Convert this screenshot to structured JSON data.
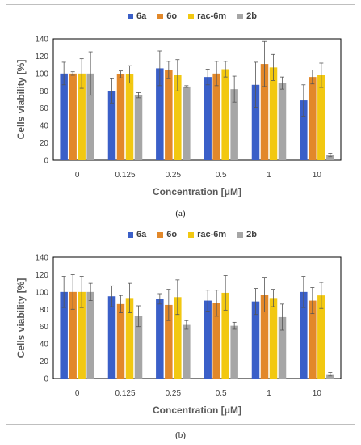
{
  "chart_data": [
    {
      "type": "bar",
      "panel_label": "(a)",
      "xlabel": "Concentration [μM]",
      "ylabel": "Cells viability [%]",
      "ylim": [
        0,
        140
      ],
      "yticks": [
        0,
        20,
        40,
        60,
        80,
        100,
        120,
        140
      ],
      "categories": [
        "0",
        "0.125",
        "0.25",
        "0.5",
        "1",
        "10"
      ],
      "legend_position": "top",
      "series": [
        {
          "name": "6a",
          "color": "#3a5fc8",
          "values": [
            100,
            80,
            106,
            96,
            87,
            69
          ],
          "errors": [
            13,
            14,
            20,
            9,
            26,
            18
          ]
        },
        {
          "name": "6o",
          "color": "#e2882a",
          "values": [
            100,
            99,
            104,
            100,
            111,
            96
          ],
          "errors": [
            2,
            4,
            10,
            14,
            26,
            8
          ]
        },
        {
          "name": "rac-6m",
          "color": "#f2c811",
          "values": [
            100,
            99,
            98,
            105,
            107,
            98
          ],
          "errors": [
            17,
            10,
            18,
            9,
            15,
            14
          ]
        },
        {
          "name": "2b",
          "color": "#a6a6a6",
          "values": [
            100,
            75,
            85,
            82,
            89,
            6
          ],
          "errors": [
            25,
            3,
            1,
            15,
            7,
            2
          ]
        }
      ]
    },
    {
      "type": "bar",
      "panel_label": "(b)",
      "xlabel": "Concentration [μM]",
      "ylabel": "Cells viability [%]",
      "ylim": [
        0,
        140
      ],
      "yticks": [
        0,
        20,
        40,
        60,
        80,
        100,
        120,
        140
      ],
      "categories": [
        "0",
        "0.125",
        "0.25",
        "0.5",
        "1",
        "10"
      ],
      "legend_position": "top",
      "series": [
        {
          "name": "6a",
          "color": "#3a5fc8",
          "values": [
            100,
            95,
            92,
            90,
            89,
            100
          ],
          "errors": [
            18,
            12,
            6,
            12,
            15,
            18
          ]
        },
        {
          "name": "6o",
          "color": "#e2882a",
          "values": [
            100,
            86,
            85,
            87,
            97,
            90
          ],
          "errors": [
            20,
            10,
            18,
            15,
            20,
            15
          ]
        },
        {
          "name": "rac-6m",
          "color": "#f2c811",
          "values": [
            100,
            93,
            94,
            99,
            93,
            96
          ],
          "errors": [
            18,
            17,
            20,
            20,
            10,
            15
          ]
        },
        {
          "name": "2b",
          "color": "#a6a6a6",
          "values": [
            100,
            72,
            62,
            61,
            71,
            5
          ],
          "errors": [
            10,
            12,
            5,
            4,
            15,
            2
          ]
        }
      ]
    }
  ]
}
